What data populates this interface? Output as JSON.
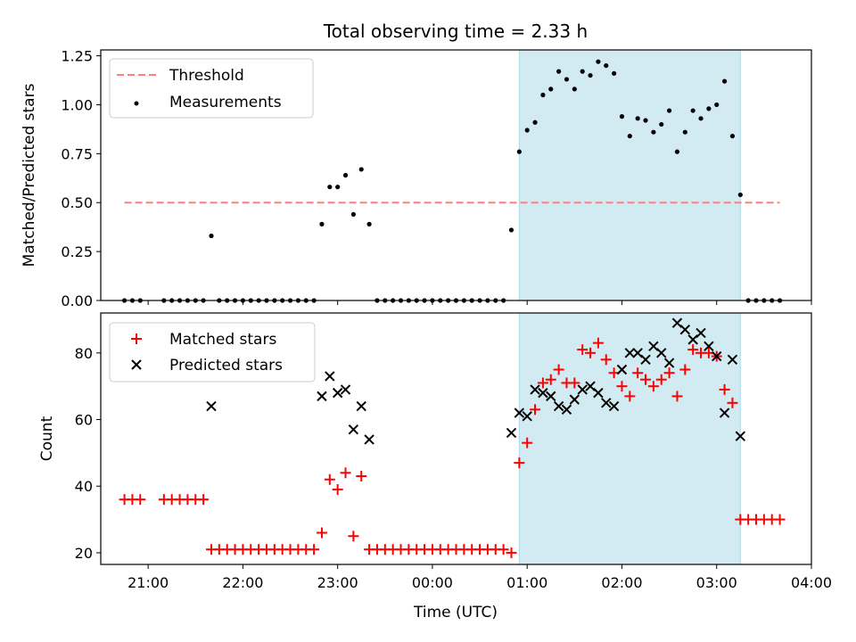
{
  "chart_data": [
    {
      "type": "scatter",
      "title": "Total observing time = 2.33 h",
      "xlabel": "",
      "ylabel": "Matched/Predicted stars",
      "ylim": [
        0,
        1.28
      ],
      "yticks": [
        "0.00",
        "0.25",
        "0.50",
        "0.75",
        "1.00",
        "1.25"
      ],
      "ytick_values": [
        0,
        0.25,
        0.5,
        0.75,
        1.0,
        1.25
      ],
      "legend": "top-left",
      "shaded_span": {
        "start": "00:55",
        "end": "03:15",
        "color": "#add8e6"
      },
      "threshold": {
        "name": "Threshold",
        "y": 0.5,
        "x_start": "20:45",
        "x_end": "03:40",
        "color": "#ff7f7f",
        "style": "dashed"
      },
      "series": [
        {
          "name": "Measurements",
          "color": "#000000",
          "marker": "dot",
          "points": [
            [
              "20:45",
              0
            ],
            [
              "20:50",
              0
            ],
            [
              "20:55",
              0
            ],
            [
              "21:10",
              0
            ],
            [
              "21:15",
              0
            ],
            [
              "21:20",
              0
            ],
            [
              "21:25",
              0
            ],
            [
              "21:30",
              0
            ],
            [
              "21:35",
              0
            ],
            [
              "21:40",
              0.33
            ],
            [
              "21:45",
              0
            ],
            [
              "21:50",
              0
            ],
            [
              "21:55",
              0
            ],
            [
              "22:00",
              0
            ],
            [
              "22:05",
              0
            ],
            [
              "22:10",
              0
            ],
            [
              "22:15",
              0
            ],
            [
              "22:20",
              0
            ],
            [
              "22:25",
              0
            ],
            [
              "22:30",
              0
            ],
            [
              "22:35",
              0
            ],
            [
              "22:40",
              0
            ],
            [
              "22:45",
              0
            ],
            [
              "22:50",
              0.39
            ],
            [
              "22:55",
              0.58
            ],
            [
              "23:00",
              0.58
            ],
            [
              "23:05",
              0.64
            ],
            [
              "23:10",
              0.44
            ],
            [
              "23:15",
              0.67
            ],
            [
              "23:20",
              0.39
            ],
            [
              "23:25",
              0
            ],
            [
              "23:30",
              0
            ],
            [
              "23:35",
              0
            ],
            [
              "23:40",
              0
            ],
            [
              "23:45",
              0
            ],
            [
              "23:50",
              0
            ],
            [
              "23:55",
              0
            ],
            [
              "00:00",
              0
            ],
            [
              "00:05",
              0
            ],
            [
              "00:10",
              0
            ],
            [
              "00:15",
              0
            ],
            [
              "00:20",
              0
            ],
            [
              "00:25",
              0
            ],
            [
              "00:30",
              0
            ],
            [
              "00:35",
              0
            ],
            [
              "00:40",
              0
            ],
            [
              "00:45",
              0
            ],
            [
              "00:50",
              0.36
            ],
            [
              "00:55",
              0.76
            ],
            [
              "01:00",
              0.87
            ],
            [
              "01:05",
              0.91
            ],
            [
              "01:10",
              1.05
            ],
            [
              "01:15",
              1.08
            ],
            [
              "01:20",
              1.17
            ],
            [
              "01:25",
              1.13
            ],
            [
              "01:30",
              1.08
            ],
            [
              "01:35",
              1.17
            ],
            [
              "01:40",
              1.15
            ],
            [
              "01:45",
              1.22
            ],
            [
              "01:50",
              1.2
            ],
            [
              "01:55",
              1.16
            ],
            [
              "02:00",
              0.94
            ],
            [
              "02:05",
              0.84
            ],
            [
              "02:10",
              0.93
            ],
            [
              "02:15",
              0.92
            ],
            [
              "02:20",
              0.86
            ],
            [
              "02:25",
              0.9
            ],
            [
              "02:30",
              0.97
            ],
            [
              "02:35",
              0.76
            ],
            [
              "02:40",
              0.86
            ],
            [
              "02:45",
              0.97
            ],
            [
              "02:50",
              0.93
            ],
            [
              "02:55",
              0.98
            ],
            [
              "03:00",
              1.0
            ],
            [
              "03:05",
              1.12
            ],
            [
              "03:10",
              0.84
            ],
            [
              "03:15",
              0.54
            ],
            [
              "03:20",
              0
            ],
            [
              "03:25",
              0
            ],
            [
              "03:30",
              0
            ],
            [
              "03:35",
              0
            ],
            [
              "03:40",
              0
            ]
          ]
        }
      ]
    },
    {
      "type": "scatter",
      "title": "",
      "xlabel": "Time (UTC)",
      "ylabel": "Count",
      "xlim": [
        "20:30",
        "04:00"
      ],
      "xticks": [
        "21:00",
        "22:00",
        "23:00",
        "00:00",
        "01:00",
        "02:00",
        "03:00",
        "04:00"
      ],
      "ylim": [
        16.5,
        92
      ],
      "yticks": [
        "20",
        "40",
        "60",
        "80"
      ],
      "ytick_values": [
        20,
        40,
        60,
        80
      ],
      "legend": "top-left",
      "shaded_span": {
        "start": "00:55",
        "end": "03:15",
        "color": "#add8e6"
      },
      "series": [
        {
          "name": "Matched stars",
          "color": "#ff0000",
          "marker": "plus",
          "points": [
            [
              "20:45",
              36
            ],
            [
              "20:50",
              36
            ],
            [
              "20:55",
              36
            ],
            [
              "21:10",
              36
            ],
            [
              "21:15",
              36
            ],
            [
              "21:20",
              36
            ],
            [
              "21:25",
              36
            ],
            [
              "21:30",
              36
            ],
            [
              "21:35",
              36
            ],
            [
              "21:40",
              21
            ],
            [
              "21:45",
              21
            ],
            [
              "21:50",
              21
            ],
            [
              "21:55",
              21
            ],
            [
              "22:00",
              21
            ],
            [
              "22:05",
              21
            ],
            [
              "22:10",
              21
            ],
            [
              "22:15",
              21
            ],
            [
              "22:20",
              21
            ],
            [
              "22:25",
              21
            ],
            [
              "22:30",
              21
            ],
            [
              "22:35",
              21
            ],
            [
              "22:40",
              21
            ],
            [
              "22:45",
              21
            ],
            [
              "22:50",
              26
            ],
            [
              "22:55",
              42
            ],
            [
              "23:00",
              39
            ],
            [
              "23:05",
              44
            ],
            [
              "23:10",
              25
            ],
            [
              "23:15",
              43
            ],
            [
              "23:20",
              21
            ],
            [
              "23:25",
              21
            ],
            [
              "23:30",
              21
            ],
            [
              "23:35",
              21
            ],
            [
              "23:40",
              21
            ],
            [
              "23:45",
              21
            ],
            [
              "23:50",
              21
            ],
            [
              "23:55",
              21
            ],
            [
              "00:00",
              21
            ],
            [
              "00:05",
              21
            ],
            [
              "00:10",
              21
            ],
            [
              "00:15",
              21
            ],
            [
              "00:20",
              21
            ],
            [
              "00:25",
              21
            ],
            [
              "00:30",
              21
            ],
            [
              "00:35",
              21
            ],
            [
              "00:40",
              21
            ],
            [
              "00:45",
              21
            ],
            [
              "00:50",
              20
            ],
            [
              "00:55",
              47
            ],
            [
              "01:00",
              53
            ],
            [
              "01:05",
              63
            ],
            [
              "01:10",
              71
            ],
            [
              "01:15",
              72
            ],
            [
              "01:20",
              75
            ],
            [
              "01:25",
              71
            ],
            [
              "01:30",
              71
            ],
            [
              "01:35",
              81
            ],
            [
              "01:40",
              80
            ],
            [
              "01:45",
              83
            ],
            [
              "01:50",
              78
            ],
            [
              "01:55",
              74
            ],
            [
              "02:00",
              70
            ],
            [
              "02:05",
              67
            ],
            [
              "02:10",
              74
            ],
            [
              "02:15",
              72
            ],
            [
              "02:20",
              70
            ],
            [
              "02:25",
              72
            ],
            [
              "02:30",
              74
            ],
            [
              "02:35",
              67
            ],
            [
              "02:40",
              75
            ],
            [
              "02:45",
              81
            ],
            [
              "02:50",
              80
            ],
            [
              "02:55",
              80
            ],
            [
              "03:00",
              79
            ],
            [
              "03:05",
              69
            ],
            [
              "03:10",
              65
            ],
            [
              "03:15",
              30
            ],
            [
              "03:20",
              30
            ],
            [
              "03:25",
              30
            ],
            [
              "03:30",
              30
            ],
            [
              "03:35",
              30
            ],
            [
              "03:40",
              30
            ]
          ]
        },
        {
          "name": "Predicted stars",
          "color": "#000000",
          "marker": "x",
          "points": [
            [
              "21:40",
              64
            ],
            [
              "22:50",
              67
            ],
            [
              "22:55",
              73
            ],
            [
              "23:00",
              68
            ],
            [
              "23:05",
              69
            ],
            [
              "23:10",
              57
            ],
            [
              "23:15",
              64
            ],
            [
              "23:20",
              54
            ],
            [
              "00:50",
              56
            ],
            [
              "00:55",
              62
            ],
            [
              "01:00",
              61
            ],
            [
              "01:05",
              69
            ],
            [
              "01:10",
              68
            ],
            [
              "01:15",
              67
            ],
            [
              "01:20",
              64
            ],
            [
              "01:25",
              63
            ],
            [
              "01:30",
              66
            ],
            [
              "01:35",
              69
            ],
            [
              "01:40",
              70
            ],
            [
              "01:45",
              68
            ],
            [
              "01:50",
              65
            ],
            [
              "01:55",
              64
            ],
            [
              "02:00",
              75
            ],
            [
              "02:05",
              80
            ],
            [
              "02:10",
              80
            ],
            [
              "02:15",
              78
            ],
            [
              "02:20",
              82
            ],
            [
              "02:25",
              80
            ],
            [
              "02:30",
              77
            ],
            [
              "02:35",
              89
            ],
            [
              "02:40",
              87
            ],
            [
              "02:45",
              84
            ],
            [
              "02:50",
              86
            ],
            [
              "02:55",
              82
            ],
            [
              "03:00",
              79
            ],
            [
              "03:05",
              62
            ],
            [
              "03:10",
              78
            ],
            [
              "03:15",
              55
            ]
          ]
        }
      ]
    }
  ]
}
